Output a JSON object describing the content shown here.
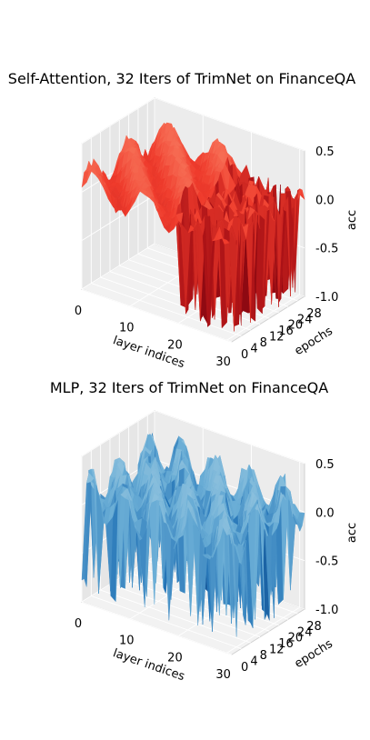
{
  "chart_data": [
    {
      "type": "surface3d",
      "title": "Self-Attention, 32 Iters of TrimNet on FinanceQA",
      "xlabel": "layer indices",
      "ylabel": "epochs",
      "zlabel": "acc",
      "x_ticks": [
        "0",
        "10",
        "20",
        "30"
      ],
      "y_ticks": [
        "0",
        "4",
        "8",
        "12",
        "16",
        "20",
        "24",
        "28"
      ],
      "z_ticks": [
        "0.5",
        "0.0",
        "-0.5",
        "-1.0"
      ],
      "xlim": [
        0,
        31
      ],
      "ylim": [
        0,
        31
      ],
      "zlim": [
        -1.0,
        0.5
      ],
      "colormap": [
        "#67000d",
        "#a50f15",
        "#ef3b2c",
        "#fc9272"
      ],
      "grid": true
    },
    {
      "type": "surface3d",
      "title": "MLP, 32 Iters of TrimNet on FinanceQA",
      "xlabel": "layer indices",
      "ylabel": "epochs",
      "zlabel": "acc",
      "x_ticks": [
        "0",
        "10",
        "20",
        "30"
      ],
      "y_ticks": [
        "0",
        "4",
        "8",
        "12",
        "16",
        "20",
        "24",
        "28"
      ],
      "z_ticks": [
        "0.5",
        "0.0",
        "-0.5",
        "-1.0"
      ],
      "xlim": [
        0,
        31
      ],
      "ylim": [
        0,
        31
      ],
      "zlim": [
        -1.0,
        0.5
      ],
      "colormap": [
        "#08306b",
        "#2171b5",
        "#6baed6",
        "#9ecae1"
      ],
      "grid": true
    }
  ]
}
